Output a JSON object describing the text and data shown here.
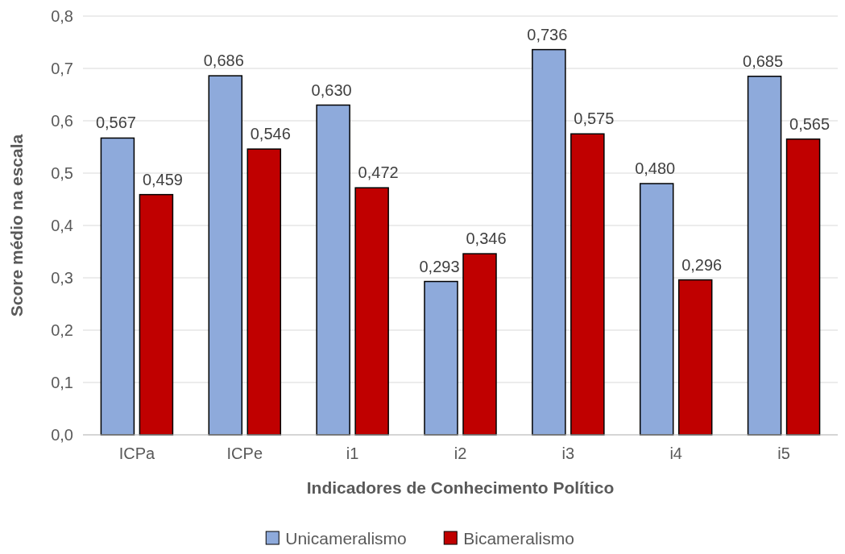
{
  "chart_data": {
    "type": "bar",
    "xlabel": "Indicadores de Conhecimento Político",
    "ylabel": "Score médio na escala",
    "categories": [
      "ICPa",
      "ICPe",
      "i1",
      "i2",
      "i3",
      "i4",
      "i5"
    ],
    "series": [
      {
        "name": "Unicameralismo",
        "color": "#8eaadb",
        "values": [
          0.567,
          0.686,
          0.63,
          0.293,
          0.736,
          0.48,
          0.685
        ],
        "value_labels": [
          "0,567",
          "0,686",
          "0,630",
          "0,293",
          "0,736",
          "0,480",
          "0,685"
        ]
      },
      {
        "name": "Bicameralismo",
        "color": "#c00000",
        "values": [
          0.459,
          0.546,
          0.472,
          0.346,
          0.575,
          0.296,
          0.565
        ],
        "value_labels": [
          "0,459",
          "0,546",
          "0,472",
          "0,346",
          "0,575",
          "0,296",
          "0,565"
        ]
      }
    ],
    "ylim": [
      0,
      0.8
    ],
    "yticks": [
      {
        "value": 0,
        "label": "0,0"
      },
      {
        "value": 0.1,
        "label": "0,1"
      },
      {
        "value": 0.2,
        "label": "0,2"
      },
      {
        "value": 0.3,
        "label": "0,3"
      },
      {
        "value": 0.4,
        "label": "0,4"
      },
      {
        "value": 0.5,
        "label": "0,5"
      },
      {
        "value": 0.6,
        "label": "0,6"
      },
      {
        "value": 0.7,
        "label": "0,7"
      },
      {
        "value": 0.8,
        "label": "0,8"
      }
    ],
    "grid": "y",
    "legend": "bottom"
  }
}
